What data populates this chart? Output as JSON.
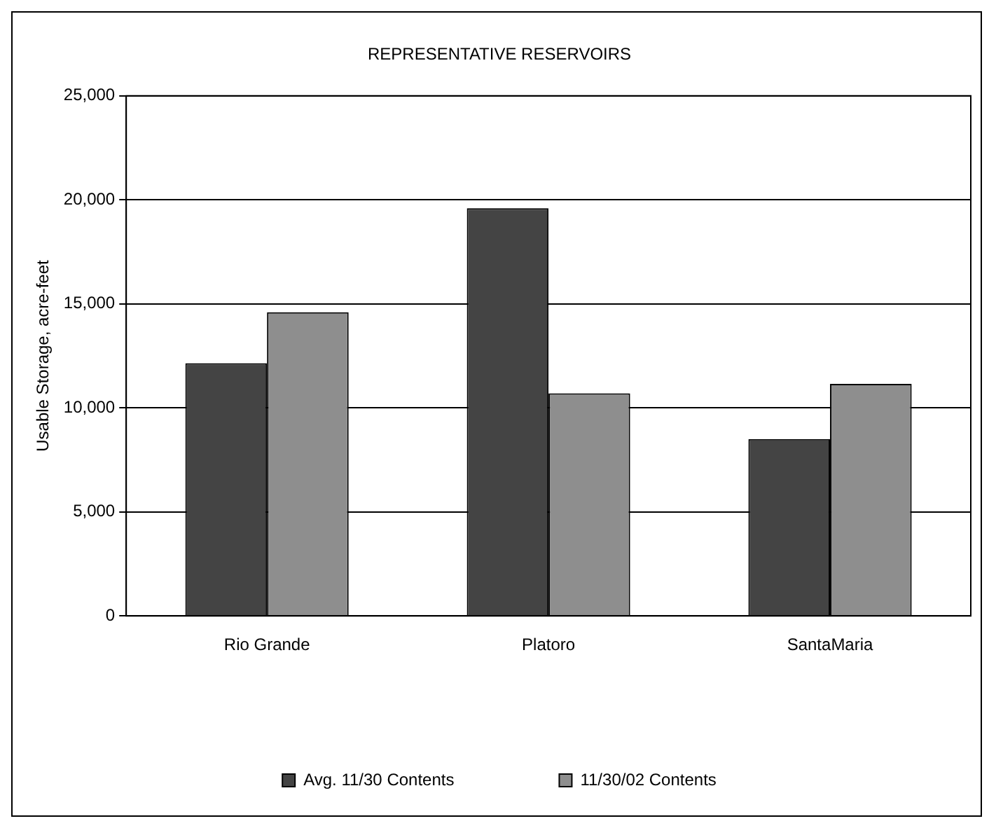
{
  "chart_data": {
    "type": "bar",
    "title": "REPRESENTATIVE RESERVOIRS",
    "ylabel": "Usable Storage, acre-feet",
    "categories": [
      "Rio Grande",
      "Platoro",
      "SantaMaria"
    ],
    "series": [
      {
        "name": "Avg. 11/30 Contents",
        "color": "#444444",
        "values": [
          12150,
          19600,
          8500
        ]
      },
      {
        "name": "11/30/02 Contents",
        "color": "#8e8e8e",
        "values": [
          14600,
          10700,
          11150
        ]
      }
    ],
    "ylim": [
      0,
      25000
    ],
    "yticks": [
      {
        "value": 0,
        "label": "0"
      },
      {
        "value": 5000,
        "label": "5,000"
      },
      {
        "value": 10000,
        "label": "10,000"
      },
      {
        "value": 15000,
        "label": "15,000"
      },
      {
        "value": 20000,
        "label": "20,000"
      },
      {
        "value": 25000,
        "label": "25,000"
      }
    ],
    "grid": "y",
    "legend": "bottom"
  }
}
